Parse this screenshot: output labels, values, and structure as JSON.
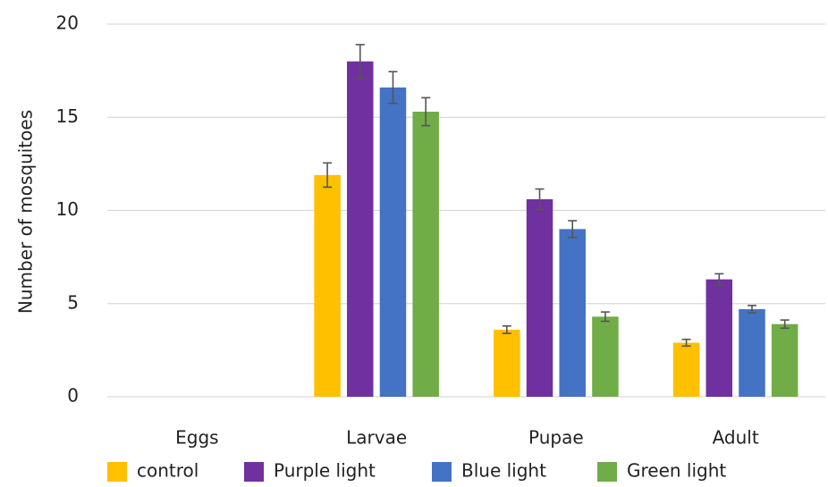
{
  "chart_data": {
    "type": "bar",
    "title": "",
    "xlabel": "",
    "ylabel": "Number of mosquitoes",
    "ylim": [
      0,
      20
    ],
    "yticks": [
      "0",
      "5",
      "10",
      "15",
      "20"
    ],
    "grid": true,
    "legend_position": "bottom",
    "categories": [
      "Eggs",
      "Larvae",
      "Pupae",
      "Adult"
    ],
    "series": [
      {
        "name": "control",
        "color": "#FFC000",
        "values": [
          0,
          11.9,
          3.6,
          2.9
        ],
        "errors": [
          0,
          0.65,
          0.2,
          0.18
        ]
      },
      {
        "name": "Purple light",
        "color": "#7030A0",
        "values": [
          0,
          18.0,
          10.6,
          6.3
        ],
        "errors": [
          0,
          0.9,
          0.55,
          0.3
        ]
      },
      {
        "name": "Blue light",
        "color": "#4472C4",
        "values": [
          0,
          16.6,
          9.0,
          4.7
        ],
        "errors": [
          0,
          0.85,
          0.45,
          0.2
        ]
      },
      {
        "name": "Green light",
        "color": "#70AD47",
        "values": [
          0,
          15.3,
          4.3,
          3.9
        ],
        "errors": [
          0,
          0.75,
          0.25,
          0.22
        ]
      }
    ]
  }
}
